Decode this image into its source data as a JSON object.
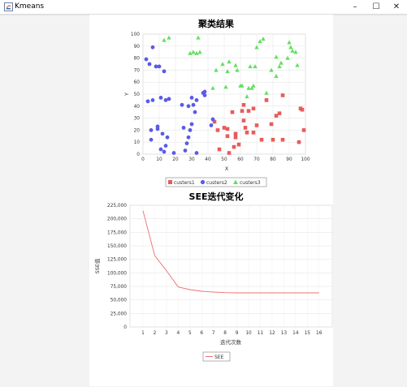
{
  "window": {
    "title": "Kmeans",
    "minimize_glyph": "–",
    "maximize_glyph": "☐",
    "close_glyph": "✕",
    "icon": "java-app-icon"
  },
  "colors": {
    "c1": "#e85b5b",
    "c2": "#5a5ae8",
    "c3": "#62e062",
    "see_line": "#ef6f6f"
  },
  "charts": [
    {
      "type": "scatter",
      "title": "聚类结果",
      "xlabel": "X",
      "ylabel": "Y",
      "xlim": [
        0,
        100
      ],
      "ylim": [
        0,
        100
      ],
      "x_ticks": [
        "0",
        "10",
        "20",
        "30",
        "40",
        "50",
        "60",
        "70",
        "80",
        "90",
        "100"
      ],
      "y_ticks": [
        "0",
        "10",
        "20",
        "30",
        "40",
        "50",
        "60",
        "70",
        "80",
        "90",
        "100"
      ],
      "grid": true,
      "legend_position": "bottom",
      "series": [
        {
          "name": "custers1",
          "marker": "square",
          "points": [
            [
              44,
              27
            ],
            [
              46,
              20
            ],
            [
              47,
              4
            ],
            [
              50,
              22
            ],
            [
              52,
              15
            ],
            [
              52,
              21
            ],
            [
              53,
              1
            ],
            [
              55,
              35
            ],
            [
              56,
              6
            ],
            [
              57,
              14
            ],
            [
              57,
              17
            ],
            [
              59,
              8
            ],
            [
              61,
              36
            ],
            [
              62,
              28
            ],
            [
              62,
              41
            ],
            [
              63,
              22
            ],
            [
              64,
              18
            ],
            [
              65,
              36
            ],
            [
              68,
              38
            ],
            [
              68,
              18
            ],
            [
              70,
              24
            ],
            [
              73,
              12
            ],
            [
              76,
              45
            ],
            [
              79,
              25
            ],
            [
              80,
              12
            ],
            [
              82,
              32
            ],
            [
              84,
              34
            ],
            [
              86,
              12
            ],
            [
              86,
              49
            ],
            [
              96,
              10
            ],
            [
              97,
              38
            ],
            [
              98,
              37
            ],
            [
              99,
              20
            ]
          ]
        },
        {
          "name": "custers2",
          "marker": "circle",
          "points": [
            [
              2,
              79
            ],
            [
              3,
              44
            ],
            [
              4,
              75
            ],
            [
              5,
              12
            ],
            [
              5,
              20
            ],
            [
              6,
              89
            ],
            [
              6,
              45
            ],
            [
              8,
              73
            ],
            [
              9,
              21
            ],
            [
              9,
              23
            ],
            [
              10,
              73
            ],
            [
              11,
              4
            ],
            [
              11,
              47
            ],
            [
              12,
              17
            ],
            [
              13,
              69
            ],
            [
              13,
              2
            ],
            [
              14,
              7
            ],
            [
              14,
              45
            ],
            [
              15,
              14
            ],
            [
              16,
              46
            ],
            [
              19,
              1
            ],
            [
              24,
              41
            ],
            [
              25,
              22
            ],
            [
              26,
              3
            ],
            [
              27,
              9
            ],
            [
              28,
              14
            ],
            [
              28,
              40
            ],
            [
              29,
              20
            ],
            [
              30,
              47
            ],
            [
              30,
              25
            ],
            [
              31,
              41
            ],
            [
              32,
              35
            ],
            [
              33,
              45
            ],
            [
              33,
              1
            ],
            [
              37,
              51
            ],
            [
              38,
              52
            ],
            [
              38,
              49
            ],
            [
              42,
              24
            ],
            [
              43,
              29
            ]
          ]
        },
        {
          "name": "custers3",
          "marker": "triangle",
          "points": [
            [
              13,
              95
            ],
            [
              16,
              97
            ],
            [
              29,
              84
            ],
            [
              31,
              85
            ],
            [
              33,
              84
            ],
            [
              34,
              97
            ],
            [
              35,
              85
            ],
            [
              43,
              55
            ],
            [
              45,
              70
            ],
            [
              49,
              75
            ],
            [
              51,
              56
            ],
            [
              52,
              69
            ],
            [
              53,
              77
            ],
            [
              57,
              74
            ],
            [
              58,
              70
            ],
            [
              60,
              57
            ],
            [
              61,
              57
            ],
            [
              64,
              48
            ],
            [
              65,
              55
            ],
            [
              66,
              73
            ],
            [
              67,
              55
            ],
            [
              68,
              57
            ],
            [
              69,
              73
            ],
            [
              70,
              89
            ],
            [
              72,
              94
            ],
            [
              74,
              96
            ],
            [
              76,
              51
            ],
            [
              79,
              70
            ],
            [
              82,
              81
            ],
            [
              82,
              65
            ],
            [
              84,
              73
            ],
            [
              85,
              76
            ],
            [
              89,
              80
            ],
            [
              90,
              93
            ],
            [
              91,
              89
            ],
            [
              92,
              86
            ],
            [
              94,
              85
            ],
            [
              95,
              74
            ]
          ]
        }
      ]
    },
    {
      "type": "line",
      "title": "SEE迭代变化",
      "xlabel": "迭代次数",
      "ylabel": "SSE值",
      "ylim": [
        0,
        225000
      ],
      "y_ticks": [
        "0",
        "25,000",
        "50,000",
        "75,000",
        "100,000",
        "125,000",
        "150,000",
        "175,000",
        "200,000",
        "225,000"
      ],
      "grid": true,
      "legend_position": "bottom",
      "categories": [
        "1",
        "2",
        "3",
        "4",
        "5",
        "6",
        "7",
        "8",
        "9",
        "10",
        "11",
        "12",
        "13",
        "14",
        "15",
        "16"
      ],
      "series": [
        {
          "name": "SEE",
          "values": [
            215000,
            132000,
            104000,
            74000,
            69000,
            66000,
            64500,
            63500,
            63000,
            63000,
            63000,
            63000,
            63000,
            63000,
            63000,
            63000
          ]
        }
      ]
    }
  ]
}
